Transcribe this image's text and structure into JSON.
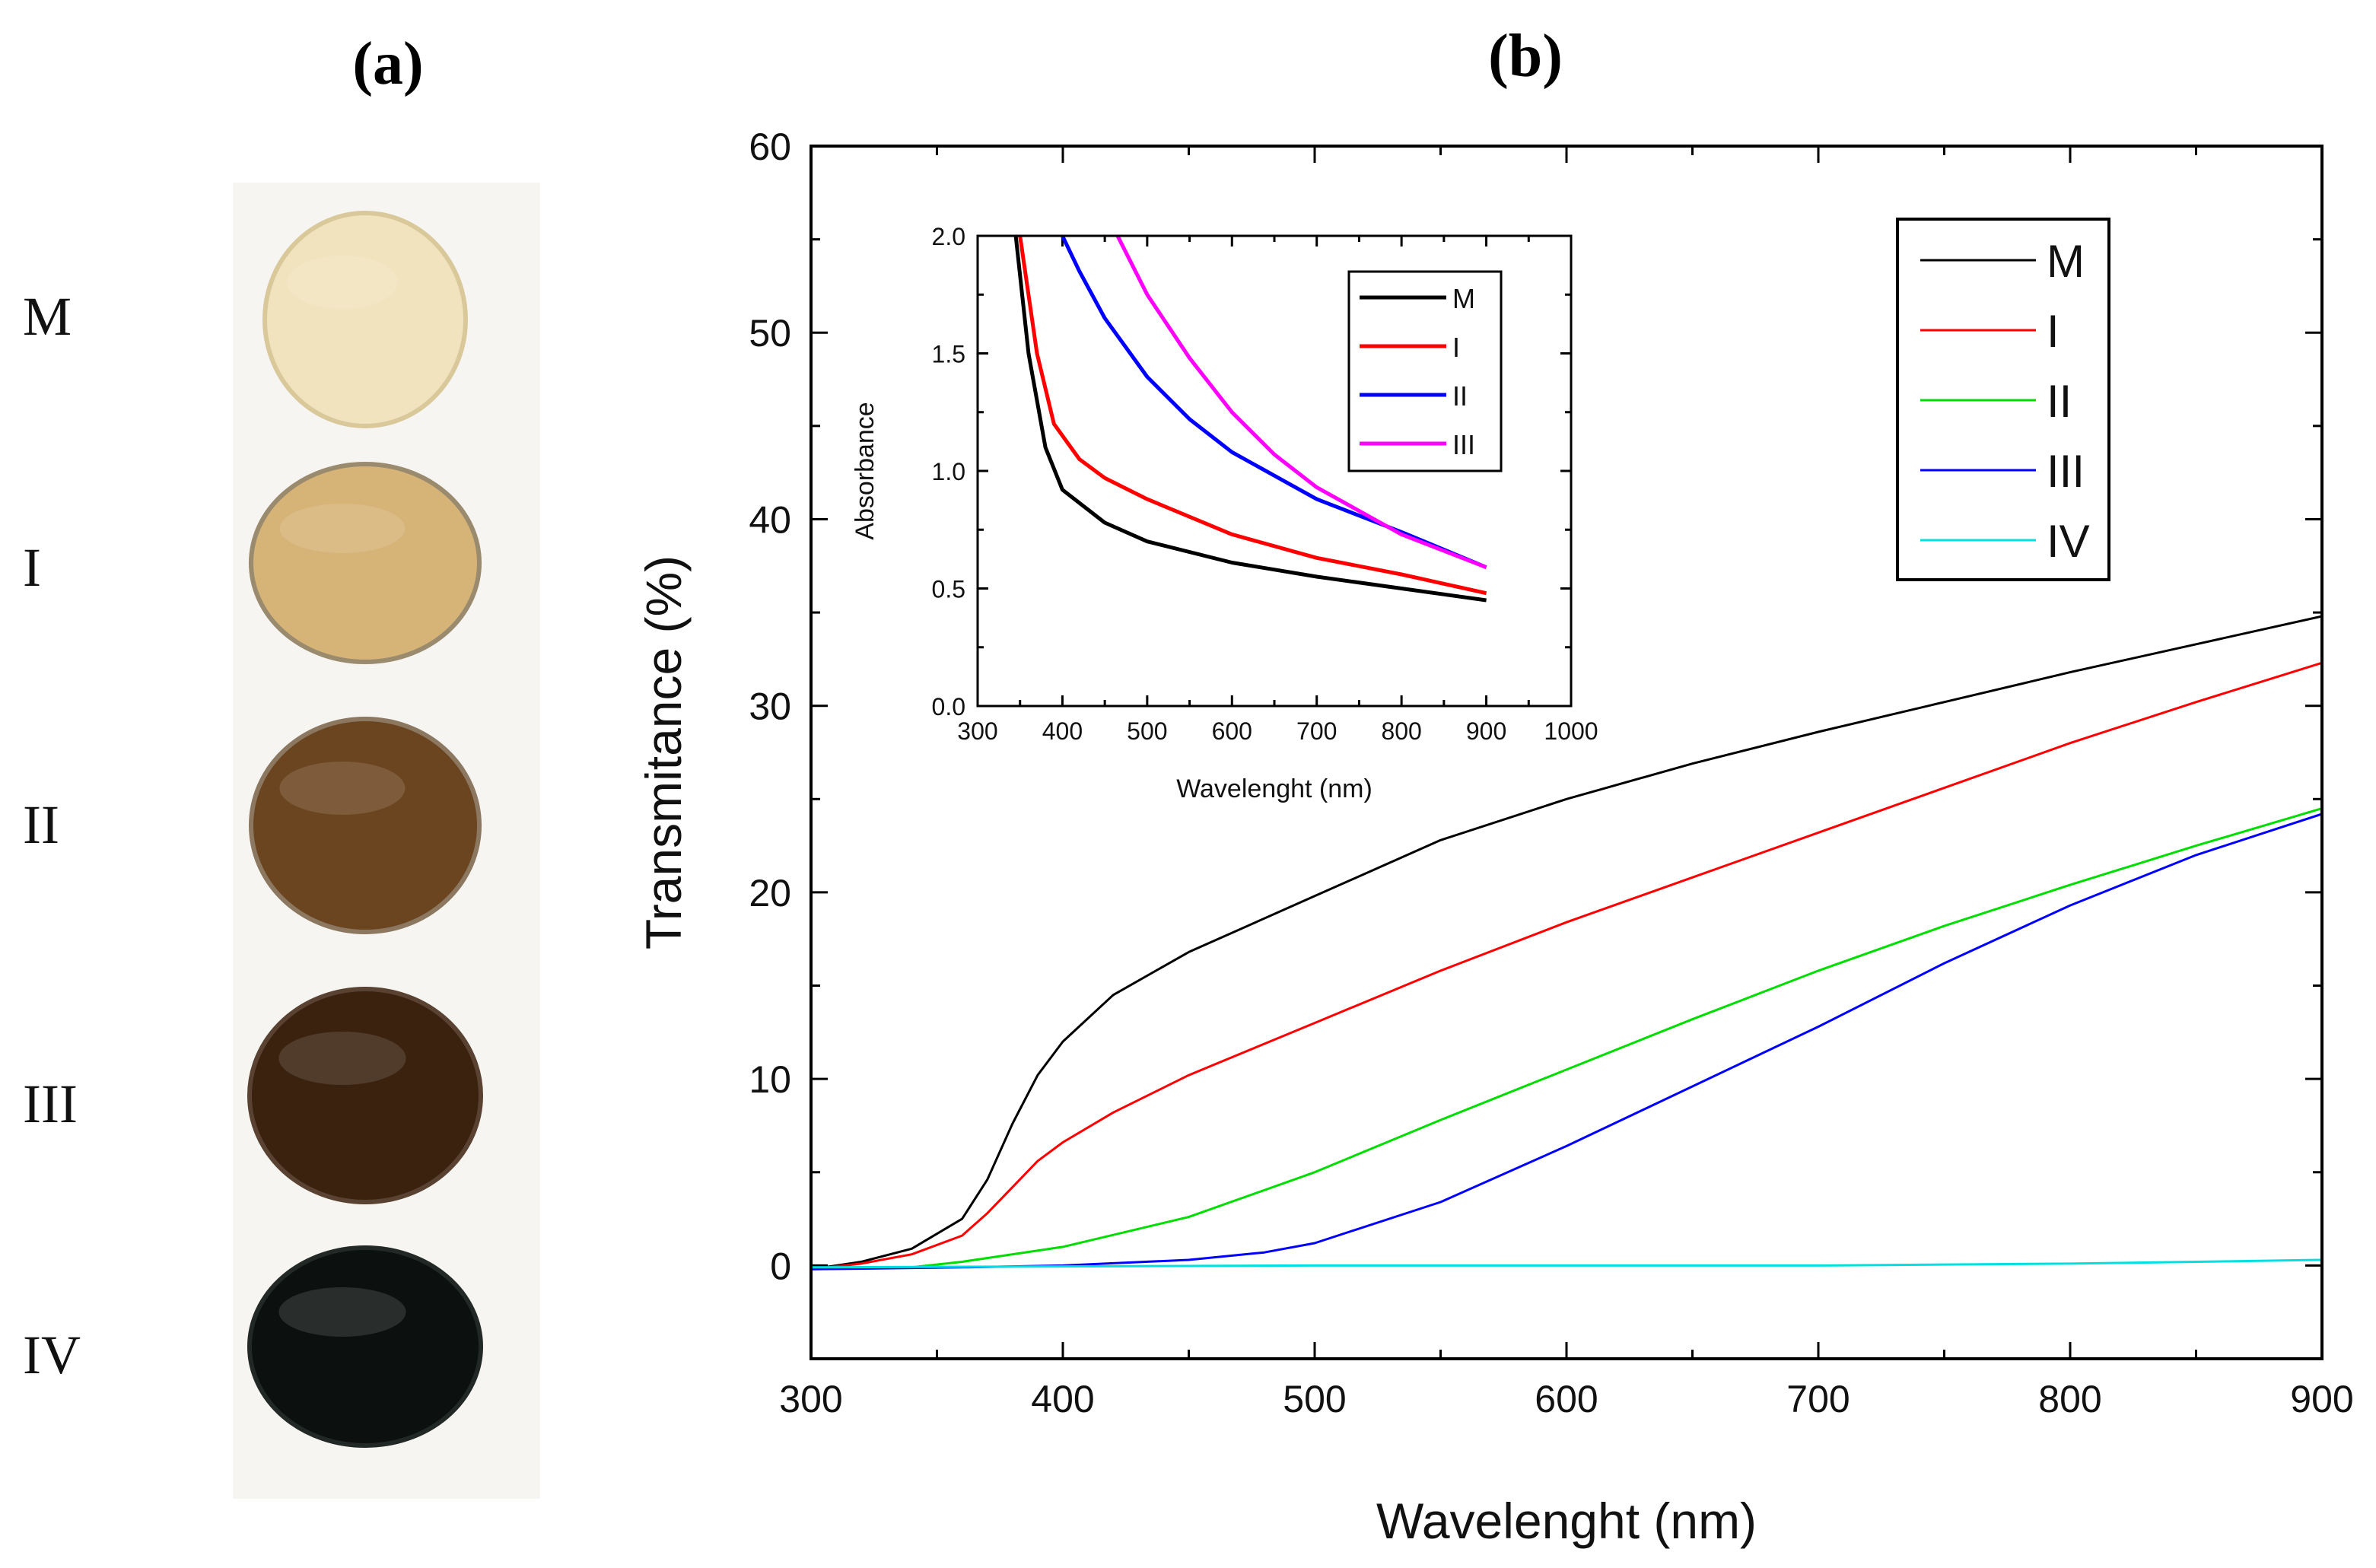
{
  "panel_labels": {
    "a": "(a)",
    "b": "(b)"
  },
  "photo": {
    "samples": [
      {
        "label": "M",
        "color": "#f1e3be",
        "edge": "#d8c89a"
      },
      {
        "label": "I",
        "color": "#d6b377",
        "edge": "#9a8a6e"
      },
      {
        "label": "II",
        "color": "#6b4520",
        "edge": "#8c7760"
      },
      {
        "label": "III",
        "color": "#3a220f",
        "edge": "#5a4232"
      },
      {
        "label": "IV",
        "color": "#0c100e",
        "edge": "#222825"
      }
    ]
  },
  "chart_data": [
    {
      "id": "main",
      "type": "line",
      "title": "",
      "xlabel": "Wavelenght (nm)",
      "ylabel": "Transmitance (%)",
      "xlim": [
        300,
        900
      ],
      "ylim": [
        -5,
        60
      ],
      "xticks": [
        300,
        400,
        500,
        600,
        700,
        800,
        900
      ],
      "yticks": [
        0,
        10,
        20,
        30,
        40,
        50,
        60
      ],
      "legend_position": "top-right",
      "series": [
        {
          "name": "M",
          "color": "#000000",
          "x": [
            300,
            320,
            340,
            360,
            370,
            380,
            390,
            400,
            420,
            450,
            500,
            550,
            600,
            650,
            700,
            750,
            800,
            850,
            900
          ],
          "y": [
            -0.2,
            0.2,
            0.9,
            2.5,
            4.6,
            7.6,
            10.2,
            12.0,
            14.5,
            16.8,
            19.8,
            22.8,
            25.0,
            26.9,
            28.6,
            30.2,
            31.8,
            33.3,
            34.8
          ]
        },
        {
          "name": "I",
          "color": "#ff0000",
          "x": [
            300,
            320,
            340,
            360,
            370,
            380,
            390,
            400,
            420,
            450,
            500,
            550,
            600,
            650,
            700,
            750,
            800,
            850,
            900
          ],
          "y": [
            -0.2,
            0.1,
            0.6,
            1.6,
            2.8,
            4.2,
            5.6,
            6.6,
            8.2,
            10.2,
            13.0,
            15.8,
            18.4,
            20.8,
            23.2,
            25.6,
            28.0,
            30.2,
            32.3
          ]
        },
        {
          "name": "II",
          "color": "#00dd00",
          "x": [
            300,
            340,
            360,
            400,
            450,
            500,
            550,
            600,
            650,
            700,
            750,
            800,
            850,
            900
          ],
          "y": [
            -0.2,
            -0.1,
            0.2,
            1.0,
            2.6,
            5.0,
            7.8,
            10.5,
            13.2,
            15.8,
            18.2,
            20.4,
            22.5,
            24.5
          ]
        },
        {
          "name": "III",
          "color": "#0000ff",
          "x": [
            300,
            360,
            400,
            450,
            480,
            500,
            550,
            600,
            650,
            700,
            750,
            800,
            850,
            900
          ],
          "y": [
            -0.2,
            -0.1,
            0.0,
            0.3,
            0.7,
            1.2,
            3.4,
            6.4,
            9.6,
            12.8,
            16.2,
            19.3,
            22.0,
            24.2
          ]
        },
        {
          "name": "IV",
          "color": "#00e0e0",
          "x": [
            300,
            500,
            700,
            800,
            850,
            900
          ],
          "y": [
            -0.1,
            0.0,
            0.0,
            0.1,
            0.2,
            0.3
          ]
        }
      ]
    },
    {
      "id": "inset",
      "type": "line",
      "title": "",
      "xlabel": "Wavelenght (nm)",
      "ylabel": "Absorbance",
      "xlim": [
        300,
        1000
      ],
      "ylim": [
        0.0,
        2.0
      ],
      "xticks": [
        300,
        400,
        500,
        600,
        700,
        800,
        900,
        1000
      ],
      "yticks": [
        0.0,
        0.5,
        1.0,
        1.5,
        2.0
      ],
      "ytick_labels": [
        "0.0",
        "0.5",
        "1.0",
        "1.5",
        "2.0"
      ],
      "legend_position": "top-right",
      "series": [
        {
          "name": "M",
          "color": "#000000",
          "x": [
            345,
            360,
            380,
            400,
            450,
            500,
            600,
            700,
            800,
            900
          ],
          "y": [
            2.0,
            1.5,
            1.1,
            0.92,
            0.78,
            0.7,
            0.61,
            0.55,
            0.5,
            0.45
          ]
        },
        {
          "name": "I",
          "color": "#ff0000",
          "x": [
            350,
            370,
            390,
            420,
            450,
            500,
            600,
            700,
            800,
            900
          ],
          "y": [
            2.0,
            1.5,
            1.2,
            1.05,
            0.97,
            0.88,
            0.73,
            0.63,
            0.56,
            0.48
          ]
        },
        {
          "name": "II",
          "color": "#0000ff",
          "x": [
            400,
            420,
            450,
            500,
            550,
            600,
            700,
            800,
            900
          ],
          "y": [
            2.0,
            1.85,
            1.65,
            1.4,
            1.22,
            1.08,
            0.88,
            0.74,
            0.59
          ]
        },
        {
          "name": "III",
          "color": "#ff00ff",
          "x": [
            465,
            500,
            550,
            600,
            650,
            700,
            800,
            900
          ],
          "y": [
            2.0,
            1.75,
            1.48,
            1.25,
            1.07,
            0.93,
            0.73,
            0.59
          ]
        }
      ]
    }
  ]
}
